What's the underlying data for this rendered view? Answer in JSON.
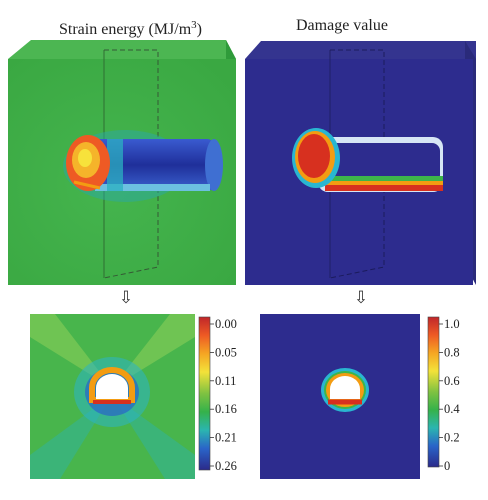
{
  "panels": {
    "strain": {
      "title": "Strain energy (MJ/m",
      "title_sup": "3",
      "title_close": ")"
    },
    "damage": {
      "title": "Damage value"
    }
  },
  "arrows": {
    "glyph": "⇩"
  },
  "colorbars": {
    "strain": {
      "ticks": [
        "0.00",
        "0.05",
        "0.11",
        "0.16",
        "0.21",
        "0.26"
      ]
    },
    "damage": {
      "ticks": [
        "1.0",
        "0.8",
        "0.6",
        "0.4",
        "0.2",
        "0"
      ]
    }
  },
  "colors": {
    "green": "#3fb04a",
    "navy": "#2d2c8e",
    "red": "#d7301f",
    "orange": "#f39c12",
    "yellow": "#f7e23b",
    "cyan": "#29b6d1",
    "blue": "#2348c9"
  }
}
